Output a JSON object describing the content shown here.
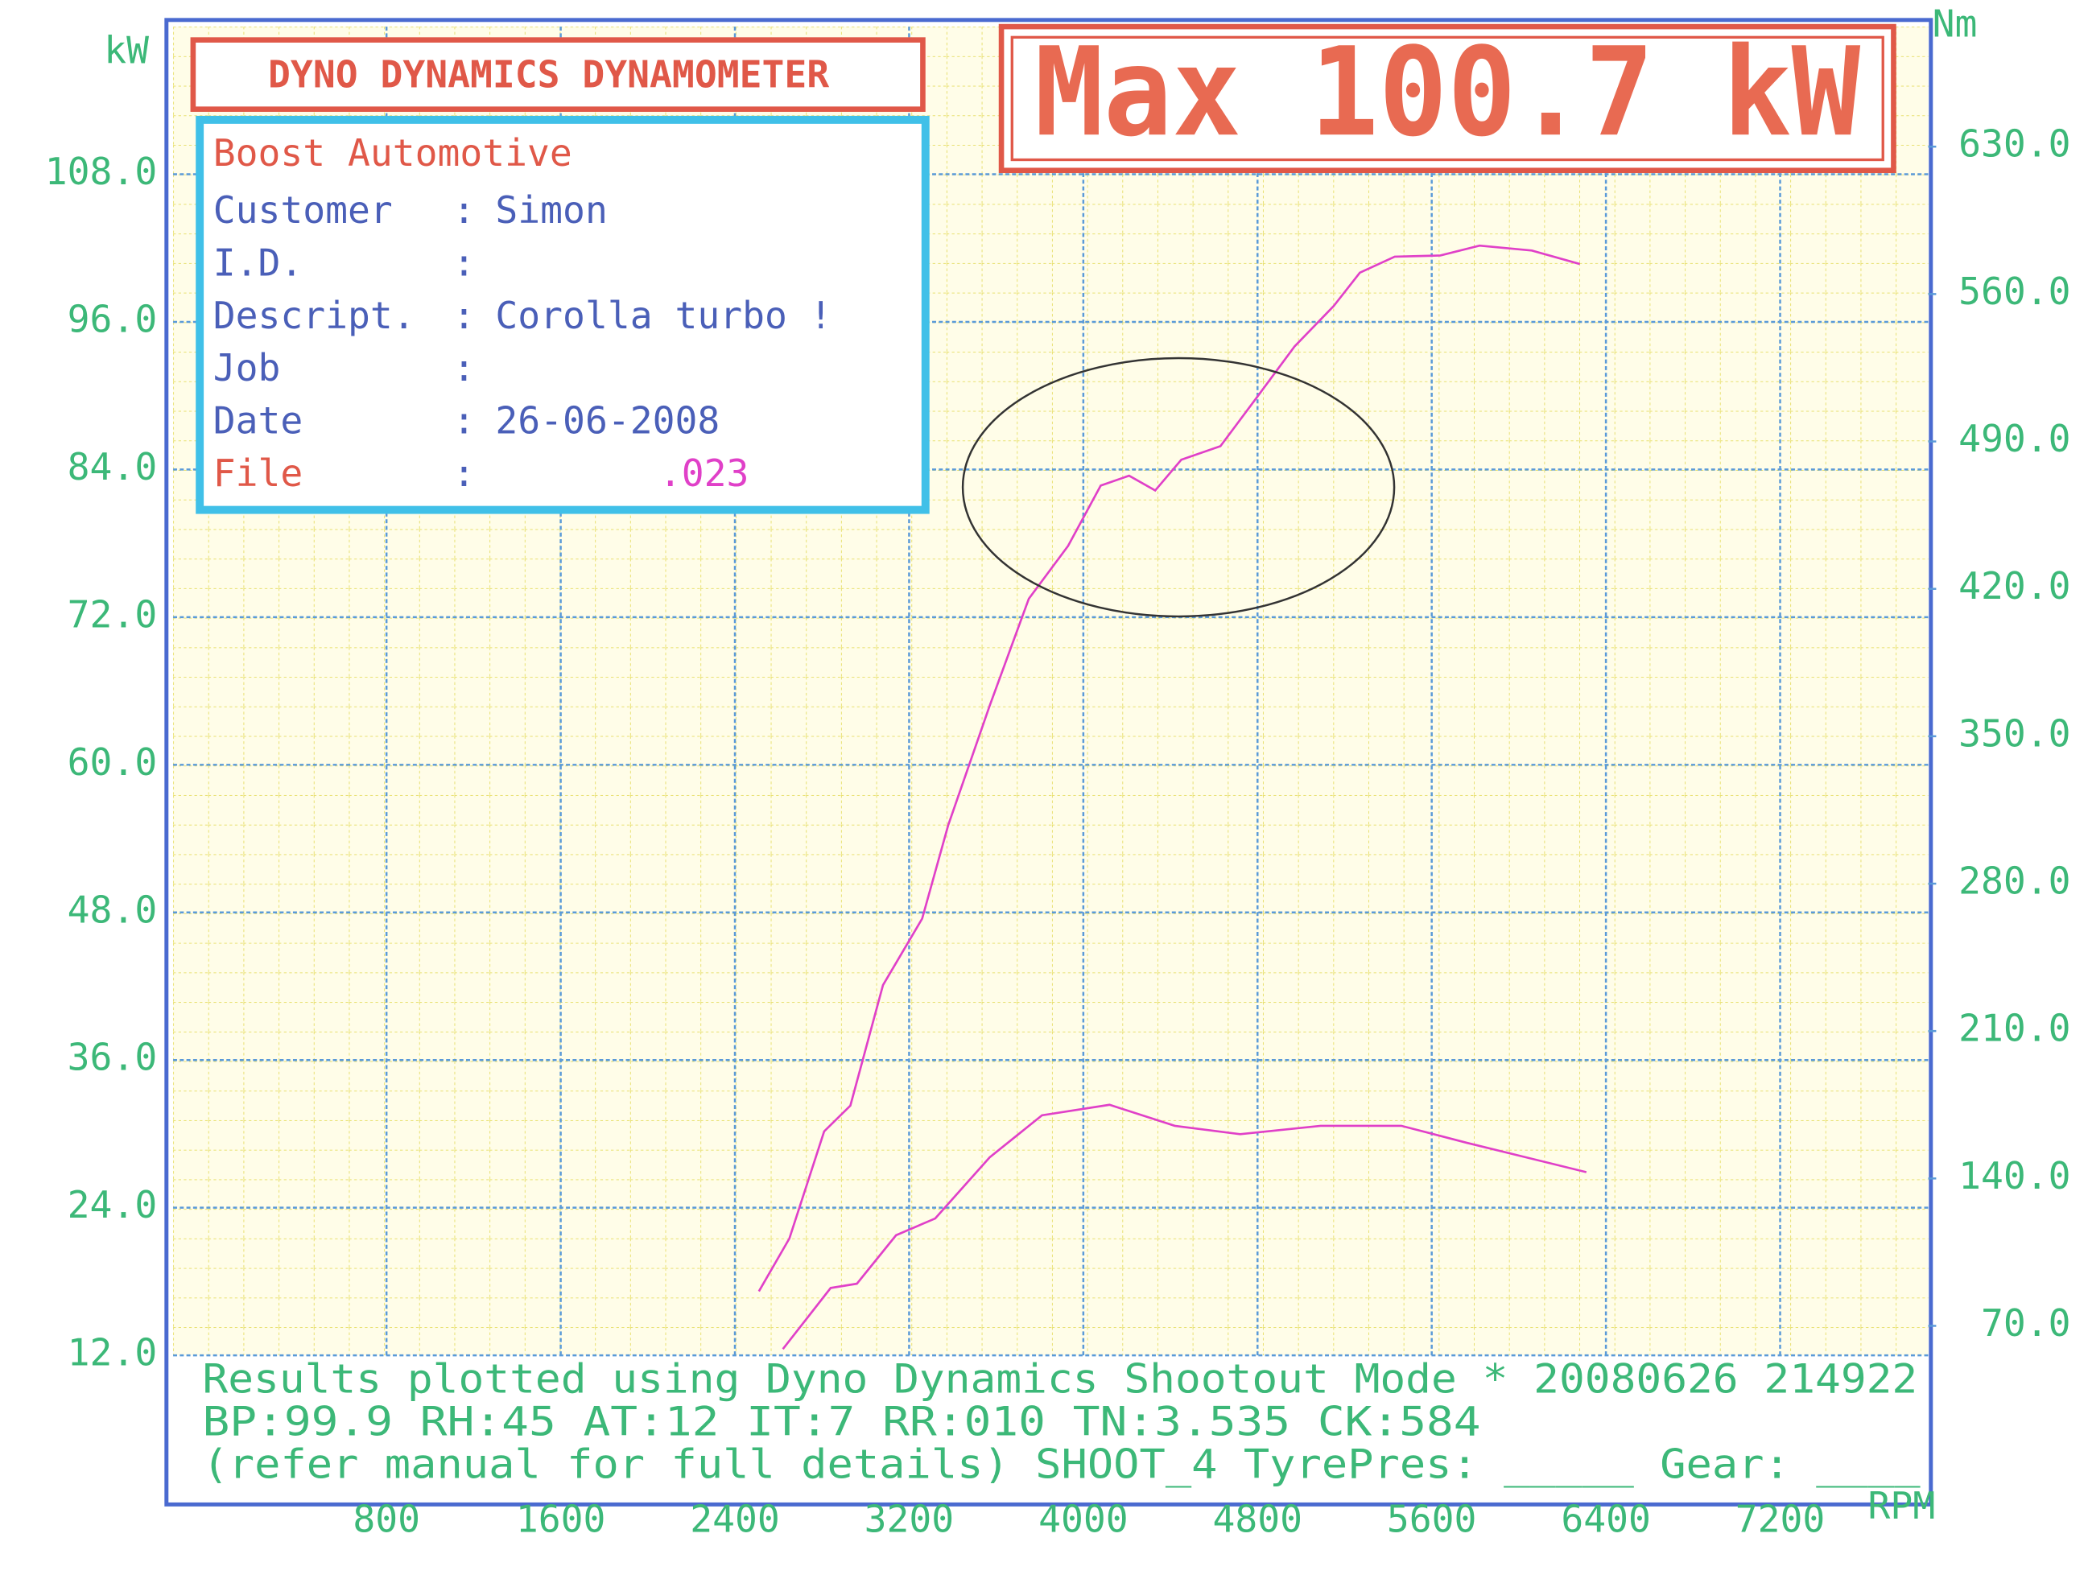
{
  "header": {
    "title": "DYNO DYNAMICS DYNAMOMETER",
    "headline": "Max 100.7 kW"
  },
  "info": {
    "company": "Boost Automotive",
    "separator": ":",
    "rows": [
      {
        "label": "Customer",
        "value": "Simon"
      },
      {
        "label": "I.D."
      },
      {
        "label": "Descript.",
        "value": "Corolla turbo !"
      },
      {
        "label": "Job"
      },
      {
        "label": "Date",
        "value": "26-06-2008"
      },
      {
        "label": "File",
        "value": ".023"
      }
    ]
  },
  "footer": [
    "Results plotted using Dyno Dynamics Shootout Mode * 20080626 214922",
    "BP:99.9  RH:45 AT:12 IT:7    RR:010 TN:3.535 CK:584",
    "(refer manual for full details) SHOOT_4  TyrePres: _____  Gear: ____"
  ],
  "chart_data": {
    "type": "line",
    "ylabel": "kW",
    "y2label": "Nm",
    "xlabel": "RPM",
    "xlim": [
      -180,
      7880
    ],
    "xticks": [
      800,
      1600,
      2400,
      3200,
      4000,
      4800,
      5600,
      6400,
      7200
    ],
    "ylim": [
      12,
      120
    ],
    "yticks": [
      {
        "value": 12,
        "label": "12.0"
      },
      {
        "value": 24,
        "label": "24.0"
      },
      {
        "value": 36,
        "label": "36.0"
      },
      {
        "value": 48,
        "label": "48.0"
      },
      {
        "value": 60,
        "label": "60.0"
      },
      {
        "value": 72,
        "label": "72.0"
      },
      {
        "value": 84,
        "label": "84.0"
      },
      {
        "value": 96,
        "label": "96.0"
      },
      {
        "value": 108,
        "label": "108.0"
      }
    ],
    "y2lim": [
      56,
      687
    ],
    "y2ticks": [
      {
        "value": 70,
        "label": "70.0"
      },
      {
        "value": 140,
        "label": "140.0"
      },
      {
        "value": 210,
        "label": "210.0"
      },
      {
        "value": 280,
        "label": "280.0"
      },
      {
        "value": 350,
        "label": "350.0"
      },
      {
        "value": 420,
        "label": "420.0"
      },
      {
        "value": 490,
        "label": "490.0"
      },
      {
        "value": 560,
        "label": "560.0"
      },
      {
        "value": 630,
        "label": "630.0"
      }
    ],
    "grid": true,
    "series": [
      {
        "color": "#e040c8",
        "x": [
          2510,
          2650,
          2810,
          2930,
          3080,
          3260,
          3380,
          3570,
          3750,
          3930,
          4080,
          4210,
          4330,
          4450,
          4630,
          4790,
          4970,
          5150,
          5270,
          5430,
          5640,
          5820,
          6060,
          6280
        ],
        "values": [
          17.2,
          21.5,
          30.2,
          32.3,
          42.1,
          47.5,
          55.1,
          64.8,
          73.5,
          77.8,
          82.7,
          83.5,
          82.3,
          84.8,
          85.9,
          89.7,
          94.0,
          97.3,
          100.0,
          101.3,
          101.4,
          102.2,
          101.8,
          100.7
        ]
      },
      {
        "color": "#e040c8",
        "axis": "y2",
        "x": [
          2620,
          2840,
          2960,
          3140,
          3320,
          3570,
          3810,
          4120,
          4420,
          4720,
          5090,
          5460,
          5760,
          6310
        ],
        "values": [
          59,
          88,
          90,
          113,
          121,
          150,
          170,
          175,
          165,
          161,
          165,
          165,
          157,
          143
        ]
      }
    ]
  }
}
